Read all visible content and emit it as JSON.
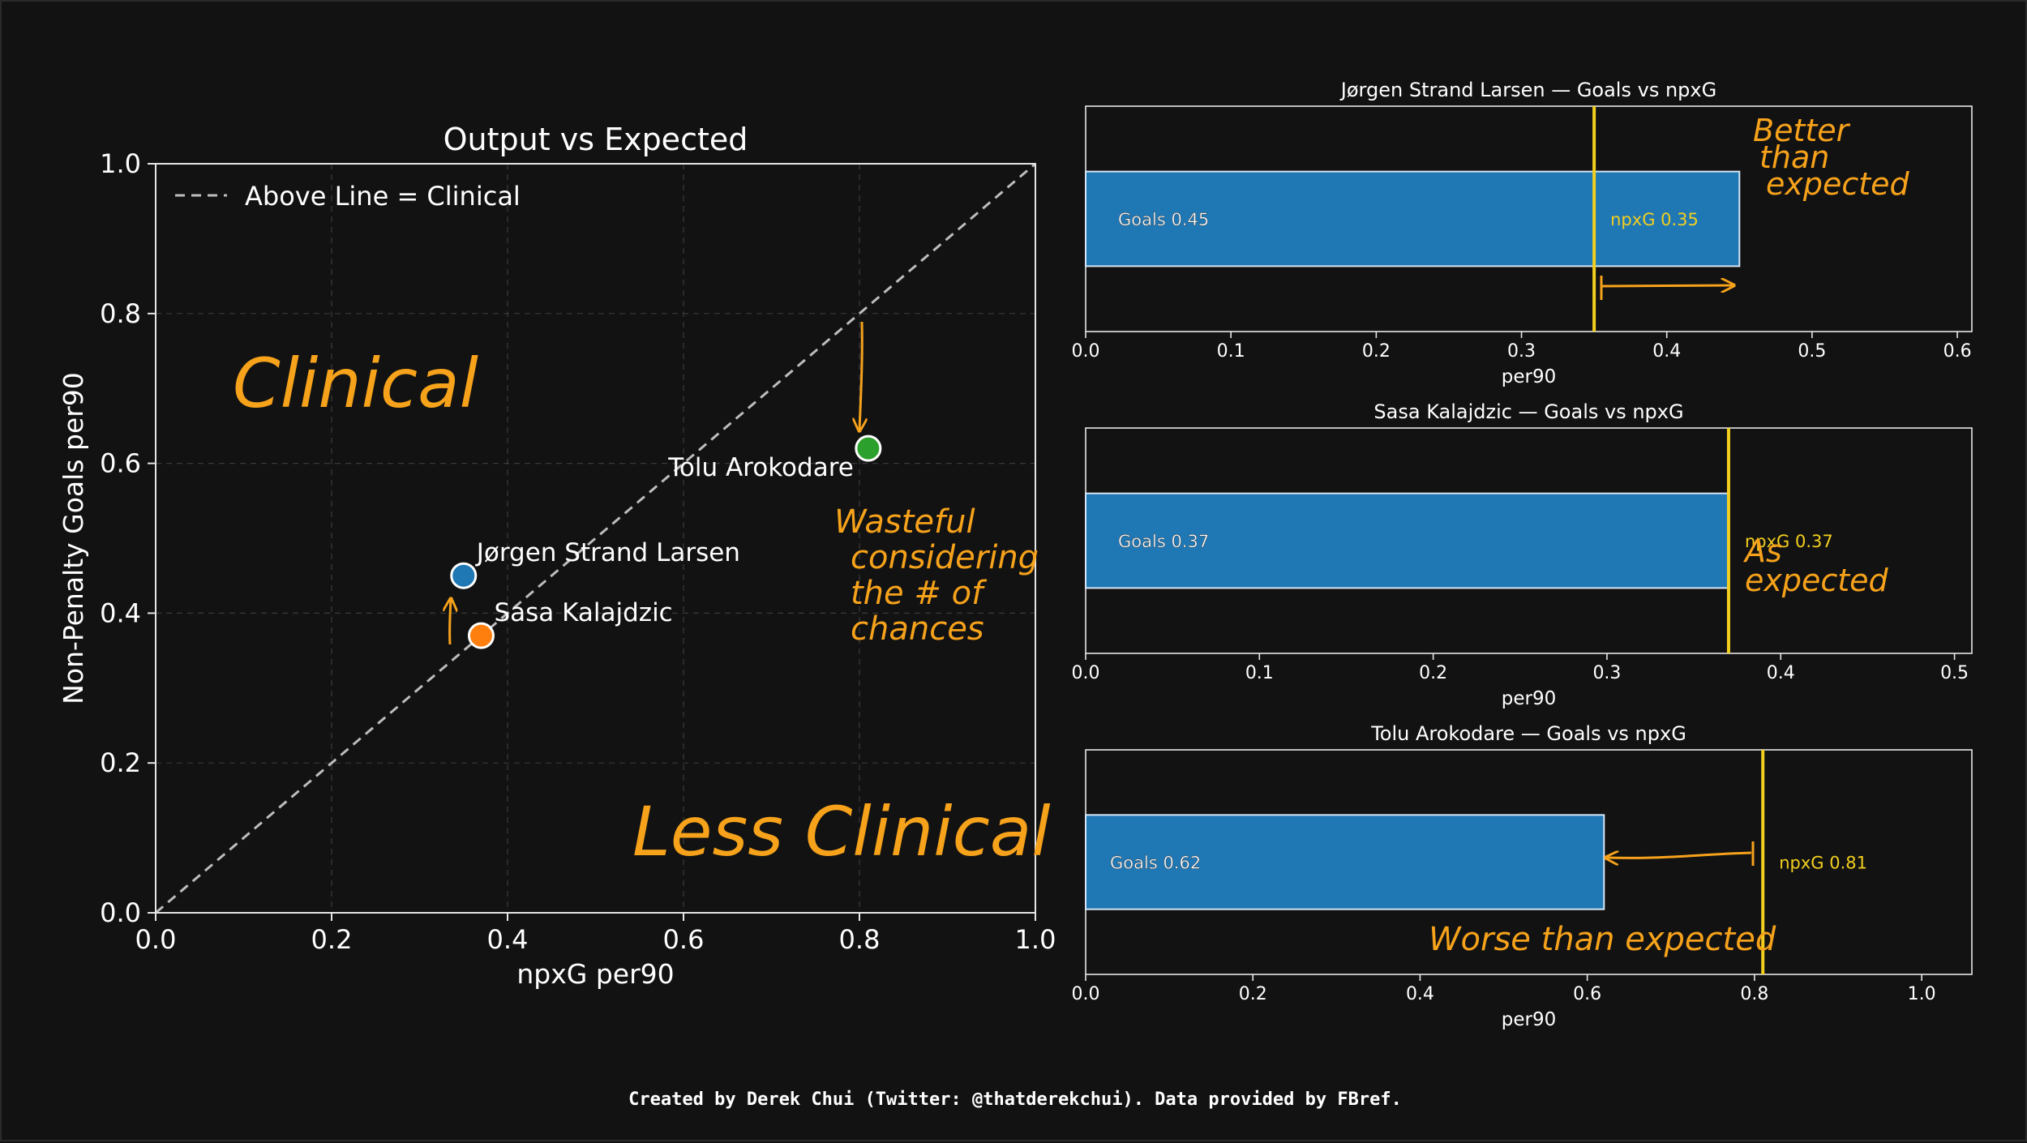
{
  "colors": {
    "background": "#121212",
    "axis": "#e6e6e6",
    "text": "#ffffff",
    "grid": "#4a4a4a",
    "annotation": "#f6a21b",
    "npxg_line": "#f2cf1f",
    "bar_fill": "#1f77b4",
    "bar_edge": "#d7e6f5",
    "players": [
      "#1f77b4",
      "#ff7f0e",
      "#2ca02c"
    ]
  },
  "chart_data": [
    {
      "type": "scatter",
      "title": "Output vs Expected",
      "xlabel": "npxG per90",
      "ylabel": "Non-Penalty Goals per90",
      "xlim": [
        0,
        1.0
      ],
      "ylim": [
        0,
        1.0
      ],
      "xticks": [
        "0.0",
        "0.2",
        "0.4",
        "0.6",
        "0.8",
        "1.0"
      ],
      "yticks": [
        "0.0",
        "0.2",
        "0.4",
        "0.6",
        "0.8",
        "1.0"
      ],
      "grid": true,
      "legend": {
        "placement": "top-left",
        "entries": [
          "Above Line = Clinical"
        ]
      },
      "reference_line": {
        "from": [
          0,
          0
        ],
        "to": [
          1.0,
          1.0
        ],
        "style": "dashed"
      },
      "points": [
        {
          "name": "Jørgen Strand Larsen",
          "x": 0.35,
          "y": 0.45
        },
        {
          "name": "Sasa Kalajdzic",
          "x": 0.37,
          "y": 0.37
        },
        {
          "name": "Tolu Arokodare",
          "x": 0.81,
          "y": 0.62
        }
      ],
      "annotations": {
        "clinical": "Clinical",
        "less_clinical": "Less Clinical",
        "wasteful": [
          "Wasteful",
          "considering",
          "the # of",
          "chances"
        ]
      }
    },
    {
      "type": "bar",
      "orientation": "horizontal",
      "title": "Jørgen Strand Larsen — Goals vs npxG",
      "xlabel": "per90",
      "xlim": [
        0,
        0.61
      ],
      "xticks": [
        "0.0",
        "0.1",
        "0.2",
        "0.3",
        "0.4",
        "0.5",
        "0.6"
      ],
      "goals": 0.45,
      "npxg": 0.35,
      "goals_label": "Goals 0.45",
      "npxg_label": "npxG 0.35",
      "annotation": [
        "Better",
        "than",
        "expected"
      ]
    },
    {
      "type": "bar",
      "orientation": "horizontal",
      "title": "Sasa Kalajdzic — Goals vs npxG",
      "xlabel": "per90",
      "xlim": [
        0,
        0.51
      ],
      "xticks": [
        "0.0",
        "0.1",
        "0.2",
        "0.3",
        "0.4",
        "0.5"
      ],
      "goals": 0.37,
      "npxg": 0.37,
      "goals_label": "Goals 0.37",
      "npxg_label": "npxG 0.37",
      "annotation": [
        "As",
        "expected"
      ]
    },
    {
      "type": "bar",
      "orientation": "horizontal",
      "title": "Tolu Arokodare — Goals vs npxG",
      "xlabel": "per90",
      "xlim": [
        0,
        1.06
      ],
      "xticks": [
        "0.0",
        "0.2",
        "0.4",
        "0.6",
        "0.8",
        "1.0"
      ],
      "goals": 0.62,
      "npxg": 0.81,
      "goals_label": "Goals 0.62",
      "npxg_label": "npxG 0.81",
      "annotation": [
        "Worse than expected"
      ]
    }
  ],
  "footer": {
    "credit": "Created by Derek Chui (Twitter: @thatderekchui). Data provided by FBref."
  }
}
